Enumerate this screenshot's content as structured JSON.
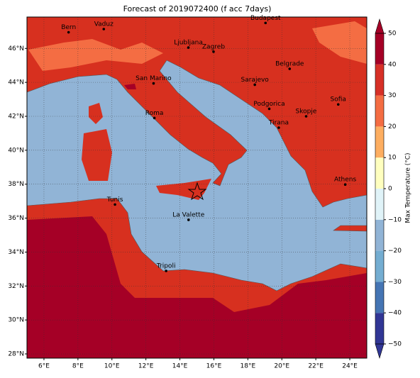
{
  "title": "Forecast of 2019072400 (f acc 7days)",
  "map": {
    "xlim": [
      5,
      25
    ],
    "ylim": [
      27.75,
      47.85
    ],
    "xticks": [
      {
        "value": 6,
        "label": "6°E"
      },
      {
        "value": 8,
        "label": "8°E"
      },
      {
        "value": 10,
        "label": "10°E"
      },
      {
        "value": 12,
        "label": "12°E"
      },
      {
        "value": 14,
        "label": "14°E"
      },
      {
        "value": 16,
        "label": "16°E"
      },
      {
        "value": 18,
        "label": "18°E"
      },
      {
        "value": 20,
        "label": "20°E"
      },
      {
        "value": 22,
        "label": "22°E"
      },
      {
        "value": 24,
        "label": "24°E"
      }
    ],
    "yticks": [
      {
        "value": 28,
        "label": "28°N"
      },
      {
        "value": 30,
        "label": "30°N"
      },
      {
        "value": 32,
        "label": "32°N"
      },
      {
        "value": 34,
        "label": "34°N"
      },
      {
        "value": 36,
        "label": "36°N"
      },
      {
        "value": 38,
        "label": "38°N"
      },
      {
        "value": 40,
        "label": "40°N"
      },
      {
        "value": 42,
        "label": "42°N"
      },
      {
        "value": 44,
        "label": "44°N"
      },
      {
        "value": 46,
        "label": "46°N"
      }
    ],
    "grid": true,
    "cities": [
      {
        "name": "Bern",
        "lon": 7.45,
        "lat": 46.95
      },
      {
        "name": "Vaduz",
        "lon": 9.52,
        "lat": 47.14
      },
      {
        "name": "Budapest",
        "lon": 19.04,
        "lat": 47.5
      },
      {
        "name": "Ljubljana",
        "lon": 14.5,
        "lat": 46.05
      },
      {
        "name": "Zagreb",
        "lon": 15.98,
        "lat": 45.81
      },
      {
        "name": "Belgrade",
        "lon": 20.46,
        "lat": 44.8
      },
      {
        "name": "San Marino",
        "lon": 12.45,
        "lat": 43.94
      },
      {
        "name": "Sarajevo",
        "lon": 18.41,
        "lat": 43.86
      },
      {
        "name": "Roma",
        "lon": 12.5,
        "lat": 41.9
      },
      {
        "name": "Podgorica",
        "lon": 19.26,
        "lat": 42.44
      },
      {
        "name": "Sofia",
        "lon": 23.32,
        "lat": 42.7
      },
      {
        "name": "Skopje",
        "lon": 21.43,
        "lat": 42.0
      },
      {
        "name": "Tirana",
        "lon": 19.82,
        "lat": 41.33
      },
      {
        "name": "Athens",
        "lon": 23.73,
        "lat": 37.98
      },
      {
        "name": "Tunis",
        "lon": 10.18,
        "lat": 36.8
      },
      {
        "name": "La Valette",
        "lon": 14.51,
        "lat": 35.9
      },
      {
        "name": "Tripoli",
        "lon": 13.19,
        "lat": 32.89
      }
    ]
  },
  "colorbar": {
    "label": "Max Temperature (°C)",
    "ticks": [
      {
        "value": -50,
        "label": "−50"
      },
      {
        "value": -40,
        "label": "−40"
      },
      {
        "value": -30,
        "label": "−30"
      },
      {
        "value": -20,
        "label": "−20"
      },
      {
        "value": -10,
        "label": "−10"
      },
      0,
      10,
      20,
      30,
      40,
      50
    ],
    "colors": [
      "#313695",
      "#4575b4",
      "#74add1",
      "#91b4d6",
      "#e0f3f8",
      "#ffffbf",
      "#fdae61",
      "#f46d43",
      "#d73027",
      "#a50026"
    ]
  }
}
